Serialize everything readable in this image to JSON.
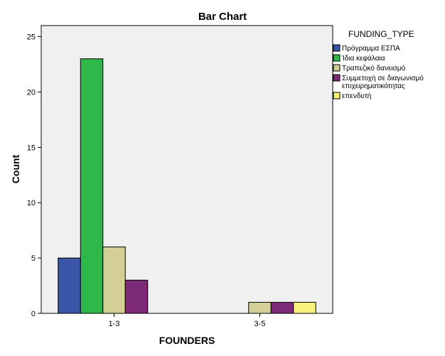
{
  "chart_data": {
    "type": "bar",
    "title": "Bar Chart",
    "xlabel": "FOUNDERS",
    "ylabel": "Count",
    "categories": [
      "1-3",
      "3-5"
    ],
    "ylim": [
      0,
      26
    ],
    "yticks": [
      0,
      5,
      10,
      15,
      20,
      25
    ],
    "grid": false,
    "legend": {
      "title": "FUNDING_TYPE",
      "placement": "right"
    },
    "series": [
      {
        "name": "Πρόγραμμα ΕΣΠΑ",
        "color": "#3a55a8",
        "values": [
          5,
          null
        ]
      },
      {
        "name": "Ίδια κεφάλαια",
        "color": "#2fb84a",
        "values": [
          23,
          null
        ]
      },
      {
        "name": "Τραπεζικό δανεισμό",
        "color": "#d4cf94",
        "values": [
          6,
          1
        ]
      },
      {
        "name": "Συμμετοχή σε διαγωνισμό επιχειρηματικότητας",
        "legend_lines": [
          "Συμμετοχή σε διαγωνισμό",
          "επιχειρηματικότητας"
        ],
        "color": "#7d2a78",
        "values": [
          3,
          1
        ]
      },
      {
        "name": "επενδυτή",
        "color": "#f6f27a",
        "values": [
          null,
          1
        ]
      }
    ]
  }
}
